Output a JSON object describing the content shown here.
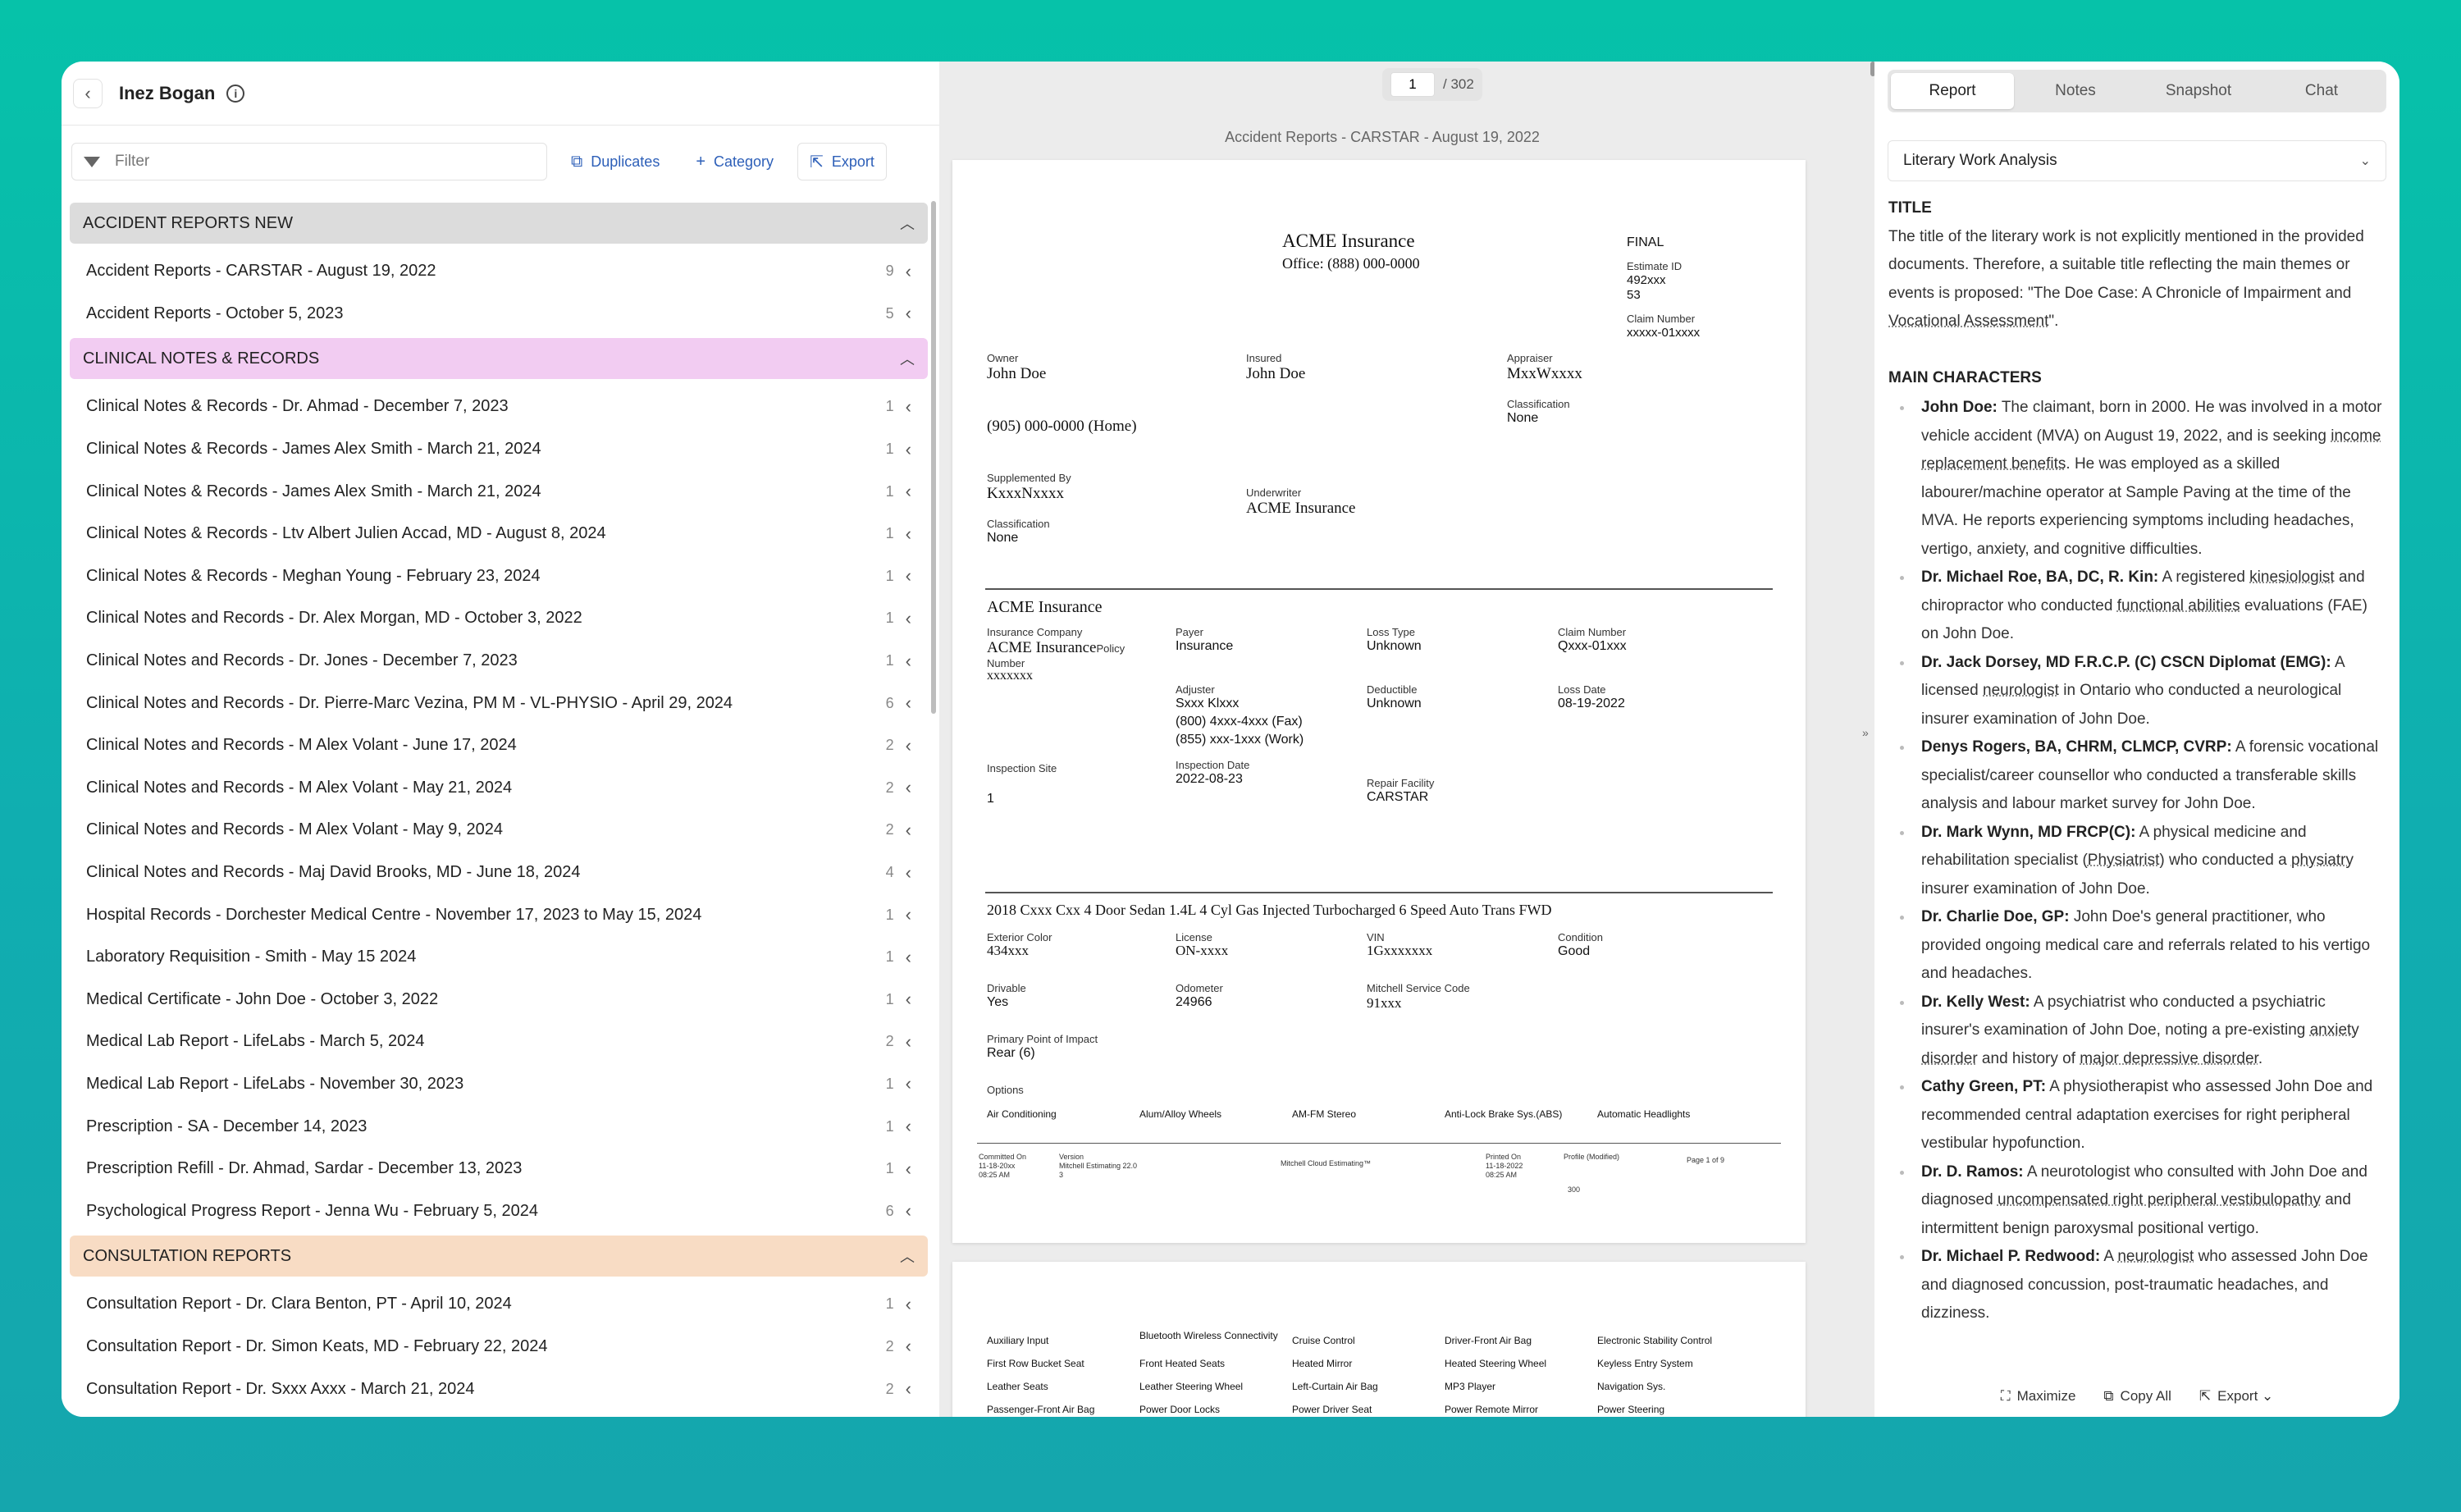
{
  "left": {
    "patient_name": "Inez Bogan",
    "filter_placeholder": "Filter",
    "actions": {
      "duplicates": "Duplicates",
      "category": "Category",
      "export": "Export"
    },
    "categories": [
      {
        "name": "ACCIDENT REPORTS NEW",
        "color": "#dcdcdc",
        "items": [
          {
            "title": "Accident Reports - CARSTAR - August 19, 2022",
            "count": "9"
          },
          {
            "title": "Accident Reports - October 5, 2023",
            "count": "5"
          }
        ]
      },
      {
        "name": "CLINICAL NOTES & RECORDS",
        "color": "#f2ccf2",
        "items": [
          {
            "title": "Clinical Notes & Records - Dr. Ahmad - December 7, 2023",
            "count": "1"
          },
          {
            "title": "Clinical Notes & Records - James Alex Smith - March 21, 2024",
            "count": "1"
          },
          {
            "title": "Clinical Notes & Records - James Alex Smith - March 21, 2024",
            "count": "1"
          },
          {
            "title": "Clinical Notes & Records - Ltv Albert Julien Accad, MD - August 8, 2024",
            "count": "1"
          },
          {
            "title": "Clinical Notes & Records - Meghan Young - February 23, 2024",
            "count": "1"
          },
          {
            "title": "Clinical Notes and Records - Dr. Alex Morgan, MD - October 3, 2022",
            "count": "1"
          },
          {
            "title": "Clinical Notes and Records - Dr. Jones - December 7, 2023",
            "count": "1"
          },
          {
            "title": "Clinical Notes and Records - Dr. Pierre-Marc Vezina, PM M - VL-PHYSIO - April 29, 2024",
            "count": "6"
          },
          {
            "title": "Clinical Notes and Records - M Alex Volant - June 17, 2024",
            "count": "2"
          },
          {
            "title": "Clinical Notes and Records - M Alex Volant - May 21, 2024",
            "count": "2"
          },
          {
            "title": "Clinical Notes and Records - M Alex Volant - May 9, 2024",
            "count": "2"
          },
          {
            "title": "Clinical Notes and Records - Maj David Brooks, MD - June 18, 2024",
            "count": "4"
          },
          {
            "title": "Hospital Records - Dorchester Medical Centre - November 17, 2023 to May 15, 2024",
            "count": "1"
          },
          {
            "title": "Laboratory Requisition - Smith - May 15 2024",
            "count": "1"
          },
          {
            "title": "Medical Certificate - John Doe - October 3, 2022",
            "count": "1"
          },
          {
            "title": "Medical Lab Report - LifeLabs - March 5, 2024",
            "count": "2"
          },
          {
            "title": "Medical Lab Report - LifeLabs - November 30, 2023",
            "count": "1"
          },
          {
            "title": "Prescription - SA - December 14, 2023",
            "count": "1"
          },
          {
            "title": "Prescription Refill - Dr. Ahmad, Sardar - December 13, 2023",
            "count": "1"
          },
          {
            "title": "Psychological Progress Report - Jenna Wu - February 5, 2024",
            "count": "6"
          }
        ]
      },
      {
        "name": "CONSULTATION REPORTS",
        "color": "#f8dcc4",
        "items": [
          {
            "title": "Consultation Report - Dr. Clara Benton, PT - April 10, 2024",
            "count": "1"
          },
          {
            "title": "Consultation Report - Dr. Simon Keats, MD - February 22, 2024",
            "count": "2"
          },
          {
            "title": "Consultation Report - Dr. Sxxx Axxx - March 21, 2024",
            "count": "2"
          }
        ]
      }
    ]
  },
  "viewer": {
    "page_current": "1",
    "page_total": "/ 302",
    "doc_title": "Accident Reports - CARSTAR - August 19, 2022",
    "doc": {
      "company": "ACME Insurance",
      "office": "Office: (888) 000-0000",
      "final": "FINAL",
      "estimate_id_label": "Estimate ID",
      "estimate_id": "492xxx",
      "estimate_sub": "53",
      "claim_number_label": "Claim Number",
      "claim_number": "xxxxx-01xxxx",
      "owner_label": "Owner",
      "owner": "John Doe",
      "insured_label": "Insured",
      "insured": "John Doe",
      "appraiser_label": "Appraiser",
      "appraiser": "MxxWxxxx",
      "classification_label": "Classification",
      "classification": "None",
      "phone": "(905) 000-0000 (Home)",
      "supplemented_label": "Supplemented By",
      "supplemented": "KxxxNxxxx",
      "underwriter_label": "Underwriter",
      "underwriter": "ACME Insurance",
      "class2_label": "Classification",
      "class2": "None",
      "section2_title": "ACME Insurance",
      "ins_company_label": "Insurance Company",
      "ins_company": "ACME Insurance",
      "policy_label": "Policy",
      "number_label": "Number",
      "policy_number": "xxxxxxx",
      "payer_label": "Payer",
      "payer": "Insurance",
      "loss_type_label": "Loss Type",
      "loss_type": "Unknown",
      "claim2_label": "Claim Number",
      "claim2": "Qxxx-01xxx",
      "adjuster_label": "Adjuster",
      "adjuster": "Sxxx Klxxx",
      "adjuster_fax": "(800) 4xxx-4xxx (Fax)",
      "adjuster_work": "(855) xxx-1xxx (Work)",
      "deductible_label": "Deductible",
      "deductible": "Unknown",
      "loss_date_label": "Loss Date",
      "loss_date": "08-19-2022",
      "inspection_site_label": "Inspection Site",
      "inspection_site": "1",
      "inspection_date_label": "Inspection Date",
      "inspection_date": "2022-08-23",
      "repair_facility_label": "Repair Facility",
      "repair_facility": "CARSTAR",
      "vehicle": "2018 Cxxx Cxx 4 Door Sedan 1.4L 4 Cyl Gas Injected Turbocharged 6 Speed Auto Trans FWD",
      "ext_color_label": "Exterior Color",
      "ext_color": "434xxx",
      "license_label": "License",
      "license": "ON-xxxx",
      "vin_label": "VIN",
      "vin": "1Gxxxxxxx",
      "condition_label": "Condition",
      "condition": "Good",
      "drivable_label": "Drivable",
      "drivable": "Yes",
      "odometer_label": "Odometer",
      "odometer": "24966",
      "mitchell_label": "Mitchell Service Code",
      "mitchell": "91xxx",
      "impact_label": "Primary Point of Impact",
      "impact": "Rear (6)",
      "options_label": "Options",
      "options": [
        "Air Conditioning",
        "Alum/Alloy Wheels",
        "AM-FM Stereo",
        "Anti-Lock Brake Sys.(ABS)",
        "Automatic Headlights"
      ],
      "footer_committed": "Committed On\n11-18-20xx\n08:25 AM",
      "footer_version": "Version\nMitchell Estimating 22.0\n3",
      "footer_cloud": "Mitchell Cloud Estimating™",
      "footer_printed": "Printed On\n11-18-2022\n08:25 AM",
      "footer_profile": "Profile (Modified)",
      "footer_page": "Page 1 of 9",
      "footer_num": "300"
    },
    "page2_options": [
      [
        "Auxiliary Input",
        "Bluetooth Wireless Connectivity",
        "Cruise Control",
        "Driver-Front Air Bag",
        "Electronic Stability Control"
      ],
      [
        "First Row Bucket Seat",
        "Front Heated Seats",
        "Heated Mirror",
        "Heated Steering Wheel",
        "Keyless Entry System"
      ],
      [
        "Leather Seats",
        "Leather Steering Wheel",
        "Left-Curtain Air Bag",
        "MP3 Player",
        "Navigation Sys."
      ],
      [
        "Passenger-Front Air Bag",
        "Power Door Locks",
        "Power Driver Seat",
        "Power Remote Mirror",
        "Power Steering"
      ]
    ]
  },
  "right": {
    "tabs": [
      "Report",
      "Notes",
      "Snapshot",
      "Chat"
    ],
    "analysis_select": "Literary Work Analysis",
    "title_heading": "TITLE",
    "title_text_1": "The title of the literary work is not explicitly mentioned in the provided documents. Therefore, a suitable title reflecting the main themes or events is proposed: \"The Doe Case: A Chronicle of Impairment and ",
    "title_text_u": "Vocational Assessment",
    "title_text_2": "\".",
    "characters_heading": "MAIN CHARACTERS",
    "characters": [
      {
        "name": "John Doe:",
        "parts": [
          " The claimant, born in 2000. He was involved in a motor vehicle accident (MVA) on August 19, 2022, and is seeking ",
          "income replacement benefits",
          ". He was employed as a skilled labourer/machine operator at Sample Paving at the time of the MVA. He reports experiencing symptoms including headaches, vertigo, anxiety, and cognitive difficulties."
        ]
      },
      {
        "name": "Dr. Michael Roe, BA, DC, R. Kin:",
        "parts": [
          " A registered ",
          "kinesiologist",
          " and chiropractor who conducted ",
          "functional abilities",
          " evaluations (FAE) on John Doe."
        ]
      },
      {
        "name": "Dr. Jack Dorsey, MD F.R.C.P. (C) CSCN Diplomat (EMG):",
        "parts": [
          " A licensed ",
          "neurologist",
          " in Ontario who conducted a neurological insurer examination of John Doe."
        ]
      },
      {
        "name": "Denys Rogers, BA, CHRM, CLMCP, CVRP:",
        "parts": [
          " A forensic vocational specialist/career counsellor who conducted a transferable skills analysis and labour market survey for John Doe."
        ]
      },
      {
        "name": "Dr. Mark Wynn, MD FRCP(C):",
        "parts": [
          " A physical medicine and rehabilitation specialist (",
          "Physiatrist",
          ") who conducted a ",
          "physiatry",
          " insurer examination of John Doe."
        ]
      },
      {
        "name": "Dr. Charlie Doe, GP:",
        "parts": [
          " John Doe's general practitioner, who provided ongoing medical care and referrals related to his vertigo and headaches."
        ]
      },
      {
        "name": "Dr. Kelly West:",
        "parts": [
          " A psychiatrist who conducted a psychiatric insurer's examination of John Doe, noting a pre-existing ",
          "anxiety disorder",
          " and history of ",
          "major depressive disorder",
          "."
        ]
      },
      {
        "name": "Cathy Green, PT:",
        "parts": [
          " A physiotherapist who assessed John Doe and recommended central adaptation exercises for right peripheral vestibular hypofunction."
        ]
      },
      {
        "name": "Dr. D. Ramos:",
        "parts": [
          " A neurotologist who consulted with John Doe and diagnosed ",
          "uncompensated right peripheral vestibulopathy",
          " and intermittent benign paroxysmal positional vertigo."
        ]
      },
      {
        "name": "Dr. Michael P. Redwood:",
        "parts": [
          " A ",
          "neurologist",
          " who assessed John Doe and diagnosed concussion, post-traumatic headaches, and dizziness."
        ]
      }
    ],
    "footer": {
      "maximize": "Maximize",
      "copy_all": "Copy All",
      "export": "Export"
    }
  }
}
